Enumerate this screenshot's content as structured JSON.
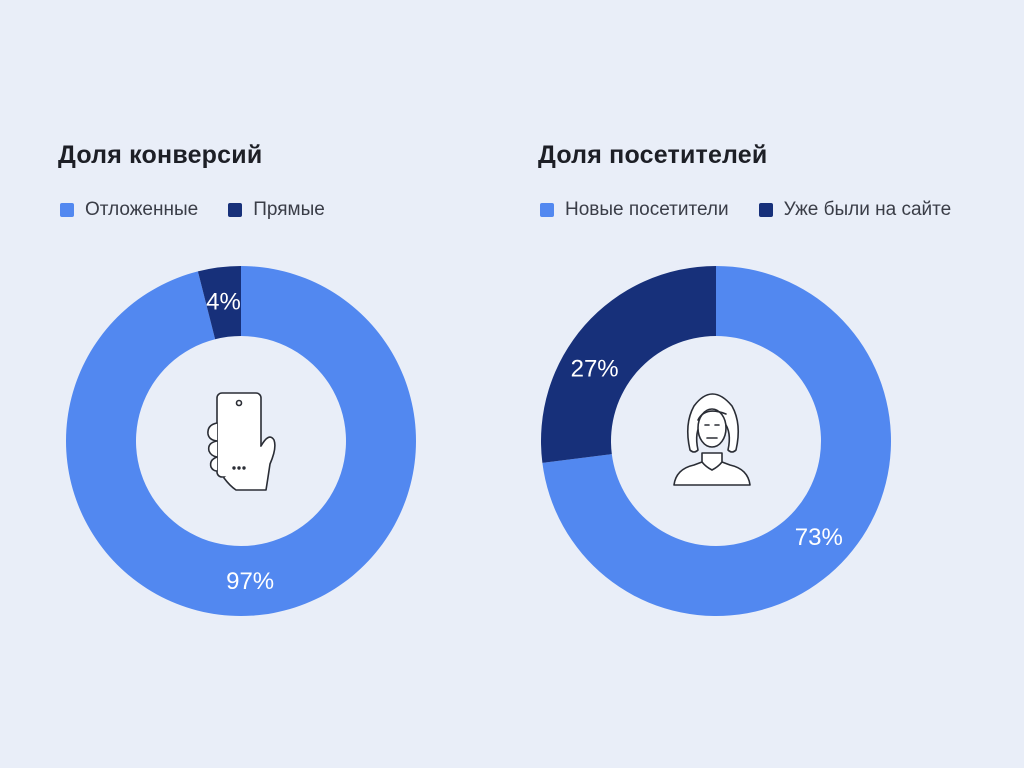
{
  "chart_data": [
    {
      "type": "pie",
      "title": "Доля конверсий",
      "legend_position": "top-left",
      "series": [
        {
          "name": "Отложенные",
          "value": 97,
          "label": "97%",
          "color": "#5288f0"
        },
        {
          "name": "Прямые",
          "value": 4,
          "label": "4%",
          "color": "#17307a"
        }
      ],
      "center_icon": "phone-in-hand-icon"
    },
    {
      "type": "pie",
      "title": "Доля посетителей",
      "legend_position": "top-left",
      "series": [
        {
          "name": "Новые посетители",
          "value": 73,
          "label": "73%",
          "color": "#5288f0"
        },
        {
          "name": "Уже были на сайте",
          "value": 27,
          "label": "27%",
          "color": "#17307a"
        }
      ],
      "center_icon": "woman-avatar-icon"
    }
  ]
}
